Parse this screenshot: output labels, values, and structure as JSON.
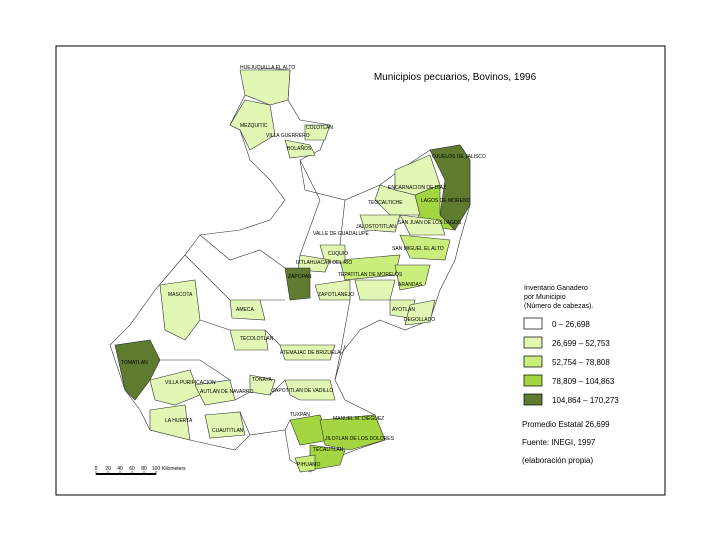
{
  "map": {
    "title": "Municipios pecuarios, Bovinos, 1996",
    "legend": {
      "title_lines": [
        "Inventario Ganadero",
        "por Municipio",
        "(Número de cabezas)."
      ],
      "classes": [
        {
          "label": "0 – 26,698",
          "color": "#ffffff"
        },
        {
          "label": "26,699 – 52,753",
          "color": "#e2f7b3"
        },
        {
          "label": "52,754 – 78,808",
          "color": "#c9ee7c"
        },
        {
          "label": "78,809 – 104,863",
          "color": "#a3d640"
        },
        {
          "label": "104,864 – 170,273",
          "color": "#5e7b30"
        }
      ]
    },
    "notes": [
      "Promedio Estatal 26,699",
      "Fuente: INEGI, 1997",
      "(elaboración propia)"
    ],
    "scale_bar": {
      "ticks": [
        "0",
        "20",
        "40",
        "60",
        "80",
        "100"
      ],
      "unit": "Kilometers"
    },
    "places": [
      "HUEJUQUILLA EL ALTO",
      "MEZQUITIC",
      "COLOTLAN",
      "VILLA GUERRERO",
      "BOLAÑOS",
      "OJUELOS DE JALISCO",
      "ENCARNACION DE DIAZ",
      "TEOCALTICHE",
      "LAGOS DE MORENO",
      "SAN JUAN DE LOS LAGOS",
      "JALOSTOTITLAN",
      "VALLE DE GUADALUPE",
      "SAN MIGUEL EL ALTO",
      "CUQUIO",
      "IXTLAHUACAN DEL RIO",
      "ZAPOPAN",
      "TEPATITLAN DE MORELOS",
      "ARANDAS",
      "ZAPOTLANEJO",
      "AYOTLAN",
      "DEGOLLADO",
      "MASCOTA",
      "AMECA",
      "TECOLOTLAN",
      "ATEMAJAC DE BRIZUELA",
      "TOMATLAN",
      "VILLA PURIFICACION",
      "AUTLAN DE NAVARRO",
      "TONAYA",
      "ZAPOTITLAN DE VADILLO",
      "TUXPAN",
      "MANUEL M. DIEGUEZ",
      "JILOTLAN DE LOS DOLORES",
      "TECALITLAN",
      "PIHUAMO",
      "LA HUERTA",
      "CUAUTITLAN"
    ]
  }
}
